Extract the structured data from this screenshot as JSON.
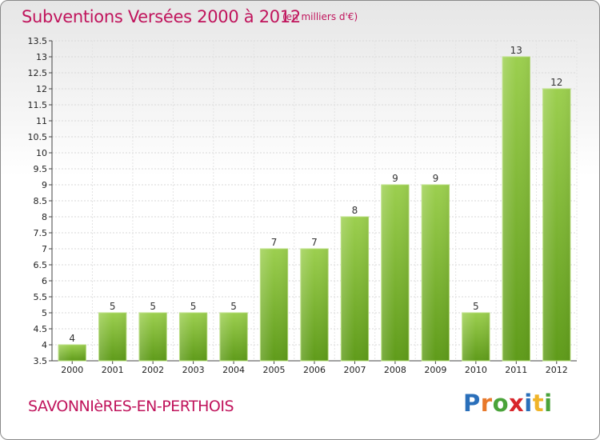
{
  "header": {
    "title": "Subventions Versées 2000 à 2012",
    "subtitle": "(en milliers d'€)"
  },
  "footer": {
    "commune": "SAVONNIèRES-EN-PERTHOIS",
    "logo": [
      "P",
      "r",
      "o",
      "x",
      "i",
      "t",
      "i"
    ]
  },
  "colors": {
    "title": "#c0145c",
    "bar_top": "#9ccf4f",
    "bar_bottom": "#5f9b1a",
    "logo": [
      "#2a6fba",
      "#e8792b",
      "#4aa33a",
      "#d8262b",
      "#2a6fba",
      "#f0b429",
      "#4aa33a"
    ]
  },
  "chart_data": {
    "type": "bar",
    "title": "Subventions Versées 2000 à 2012",
    "subtitle": "(en milliers d'€)",
    "categories": [
      "2000",
      "2001",
      "2002",
      "2003",
      "2004",
      "2005",
      "2006",
      "2007",
      "2008",
      "2009",
      "2010",
      "2011",
      "2012"
    ],
    "values": [
      4,
      5,
      5,
      5,
      5,
      7,
      7,
      8,
      9,
      9,
      5,
      13,
      12
    ],
    "value_labels": [
      "4",
      "5",
      "5",
      "5",
      "5",
      "7",
      "7",
      "8",
      "9",
      "9",
      "5",
      "13",
      "12"
    ],
    "ylim": [
      3.5,
      13.5
    ],
    "yticks": [
      3.5,
      4,
      4.5,
      5,
      5.5,
      6,
      6.5,
      7,
      7.5,
      8,
      8.5,
      9,
      9.5,
      10,
      10.5,
      11,
      11.5,
      12,
      12.5,
      13,
      13.5
    ],
    "ytick_labels": [
      "3.5",
      "4",
      "4.5",
      "5",
      "5.5",
      "6",
      "6.5",
      "7",
      "7.5",
      "8",
      "8.5",
      "9",
      "9.5",
      "10",
      "10.5",
      "11",
      "11.5",
      "12",
      "12.5",
      "13",
      "13.5"
    ],
    "grid": true,
    "legend": false
  }
}
